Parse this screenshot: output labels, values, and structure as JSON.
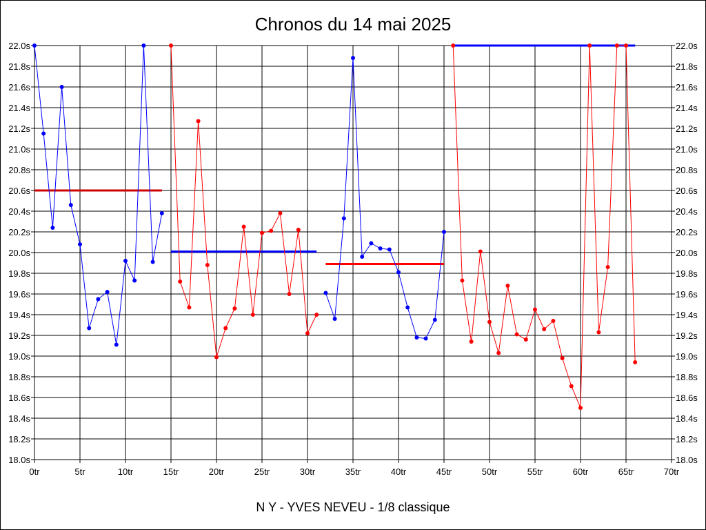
{
  "chart_data": {
    "type": "line",
    "title": "Chronos du 14 mai 2025",
    "subtitle": "N Y - YVES NEVEU - 1/8 classique",
    "x_unit": "tr",
    "y_unit": "s",
    "xlim": [
      0,
      70
    ],
    "ylim": [
      18.0,
      22.0
    ],
    "x_ticks": [
      "0tr",
      "5tr",
      "10tr",
      "15tr",
      "20tr",
      "25tr",
      "30tr",
      "35tr",
      "40tr",
      "45tr",
      "50tr",
      "55tr",
      "60tr",
      "65tr",
      "70tr"
    ],
    "y_ticks": [
      "22.0s",
      "21.8s",
      "21.6s",
      "21.4s",
      "21.2s",
      "21.0s",
      "20.8s",
      "20.6s",
      "20.4s",
      "20.2s",
      "20.0s",
      "19.8s",
      "19.6s",
      "19.4s",
      "19.2s",
      "19.0s",
      "18.8s",
      "18.6s",
      "18.4s",
      "18.2s",
      "18.0s"
    ],
    "grid": true,
    "series": [
      {
        "color": "#0000ff",
        "x": [
          0,
          1,
          2,
          3,
          4,
          5,
          6,
          7,
          8,
          9,
          10,
          11,
          12,
          13,
          14
        ],
        "y": [
          22.0,
          21.15,
          20.24,
          21.6,
          20.46,
          20.08,
          19.27,
          19.55,
          19.62,
          19.11,
          19.92,
          19.73,
          22.0,
          19.91,
          20.38
        ]
      },
      {
        "color": "#ff0000",
        "x": [
          15,
          16,
          17,
          18,
          19,
          20,
          21,
          22,
          23,
          24,
          25,
          26,
          27,
          28,
          29,
          30,
          31
        ],
        "y": [
          22.0,
          19.72,
          19.47,
          21.27,
          19.88,
          18.99,
          19.27,
          19.46,
          20.25,
          19.4,
          20.19,
          20.21,
          20.38,
          19.6,
          20.22,
          19.22,
          19.4
        ]
      },
      {
        "color": "#0000ff",
        "x": [
          32,
          33,
          34,
          35,
          36,
          37,
          38,
          39,
          40,
          41,
          42,
          43,
          44,
          45
        ],
        "y": [
          19.61,
          19.36,
          20.33,
          21.88,
          19.96,
          20.09,
          20.04,
          20.03,
          19.81,
          19.47,
          19.18,
          19.17,
          19.35,
          20.2
        ]
      },
      {
        "color": "#ff0000",
        "x": [
          46,
          47,
          48,
          49,
          50,
          51,
          52,
          53,
          54,
          55,
          56,
          57,
          58,
          59,
          60,
          61,
          62,
          63,
          64,
          65,
          66
        ],
        "y": [
          22.0,
          19.73,
          19.14,
          20.01,
          19.33,
          19.03,
          19.68,
          19.21,
          19.16,
          19.45,
          19.26,
          19.34,
          18.98,
          18.71,
          18.5,
          22.0,
          19.23,
          19.86,
          22.0,
          22.0,
          18.94
        ]
      }
    ],
    "mean_lines": [
      {
        "color": "#cc0000",
        "x_start": 0,
        "x_end": 14,
        "value": 20.6
      },
      {
        "color": "#0000ff",
        "x_start": 15,
        "x_end": 31,
        "value": 20.01
      },
      {
        "color": "#ff0000",
        "x_start": 32,
        "x_end": 45,
        "value": 19.89
      },
      {
        "color": "#0000ff",
        "x_start": 46,
        "x_end": 66,
        "value": 22.0
      }
    ]
  }
}
